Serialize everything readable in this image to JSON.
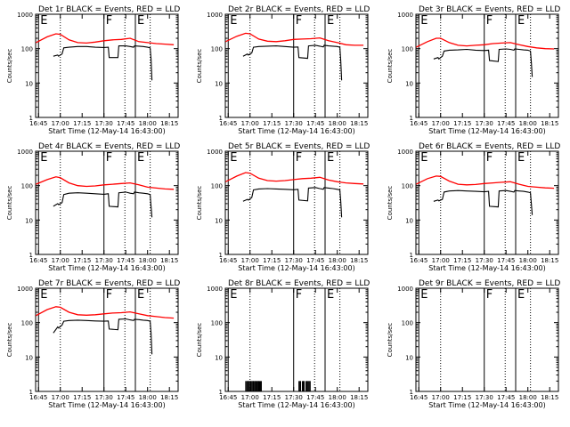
{
  "chart_data": {
    "type": "line",
    "grid": false,
    "ylabel": "Counts/sec",
    "xlabel": "Start Time (12-May-14 16:43:00)",
    "y_scale": "log",
    "ylim": [
      1,
      1000
    ],
    "y_ticks": [
      1,
      10,
      100,
      1000
    ],
    "y_tick_labels": [
      "1",
      "10",
      "100",
      "1000"
    ],
    "xlim": [
      16.717,
      18.35
    ],
    "x_ticks": [
      16.75,
      17.0,
      17.25,
      17.5,
      17.75,
      18.0,
      18.25
    ],
    "x_tick_labels": [
      "16:45",
      "17:00",
      "17:15",
      "17:30",
      "17:45",
      "18:00",
      "18:15"
    ],
    "series_legend": "BLACK = Events, RED = LLD",
    "markers": [
      {
        "label": "E",
        "x": 16.75,
        "style": "solid"
      },
      {
        "label": "",
        "x": 17.0,
        "style": "dotted"
      },
      {
        "label": "F",
        "x": 17.5,
        "style": "solid"
      },
      {
        "label": "",
        "x": 17.74,
        "style": "dotted"
      },
      {
        "label": "E",
        "x": 17.86,
        "style": "solid"
      },
      {
        "label": "",
        "x": 18.03,
        "style": "dotted"
      }
    ],
    "panels": [
      {
        "title": "Det 1r BLACK = Events, RED = LLD",
        "red": {
          "x": [
            16.72,
            16.85,
            16.95,
            17.0,
            17.1,
            17.2,
            17.3,
            17.4,
            17.5,
            17.6,
            17.7,
            17.8,
            17.9,
            18.0,
            18.1,
            18.2,
            18.3
          ],
          "y": [
            150,
            220,
            270,
            260,
            180,
            150,
            145,
            155,
            170,
            180,
            185,
            200,
            160,
            150,
            140,
            135,
            130
          ]
        },
        "black": {
          "x": [
            16.92,
            16.97,
            16.98,
            17.02,
            17.04,
            17.1,
            17.2,
            17.3,
            17.4,
            17.5,
            17.55,
            17.56,
            17.66,
            17.67,
            17.75,
            17.8,
            17.84,
            17.85,
            17.9,
            17.95,
            18.0,
            18.03,
            18.04,
            18.05
          ],
          "y": [
            60,
            65,
            60,
            70,
            105,
            110,
            115,
            115,
            110,
            108,
            110,
            55,
            55,
            120,
            120,
            115,
            110,
            120,
            118,
            115,
            110,
            105,
            50,
            12
          ]
        }
      },
      {
        "title": "Det 2r BLACK = Events, RED = LLD",
        "red": {
          "x": [
            16.72,
            16.85,
            16.95,
            17.0,
            17.1,
            17.2,
            17.3,
            17.4,
            17.5,
            17.6,
            17.7,
            17.8,
            17.9,
            18.0,
            18.1,
            18.2,
            18.3
          ],
          "y": [
            160,
            230,
            280,
            270,
            190,
            165,
            160,
            170,
            185,
            190,
            195,
            205,
            170,
            150,
            130,
            125,
            125
          ]
        },
        "black": {
          "x": [
            16.92,
            16.97,
            16.98,
            17.02,
            17.04,
            17.1,
            17.2,
            17.3,
            17.4,
            17.5,
            17.55,
            17.56,
            17.66,
            17.67,
            17.75,
            17.8,
            17.84,
            17.85,
            17.9,
            17.95,
            18.0,
            18.03,
            18.04,
            18.05
          ],
          "y": [
            60,
            70,
            65,
            75,
            110,
            115,
            118,
            120,
            115,
            110,
            112,
            55,
            52,
            120,
            125,
            118,
            112,
            125,
            120,
            118,
            115,
            110,
            45,
            12
          ]
        }
      },
      {
        "title": "Det 3r BLACK = Events, RED = LLD",
        "red": {
          "x": [
            16.72,
            16.85,
            16.95,
            17.0,
            17.1,
            17.2,
            17.3,
            17.4,
            17.5,
            17.6,
            17.7,
            17.8,
            17.9,
            18.0,
            18.1,
            18.2,
            18.3
          ],
          "y": [
            110,
            160,
            200,
            200,
            150,
            125,
            120,
            125,
            130,
            140,
            145,
            150,
            130,
            115,
            105,
            100,
            98
          ]
        },
        "black": {
          "x": [
            16.92,
            16.97,
            16.98,
            17.02,
            17.04,
            17.1,
            17.2,
            17.3,
            17.4,
            17.5,
            17.55,
            17.56,
            17.66,
            17.67,
            17.75,
            17.8,
            17.84,
            17.85,
            17.9,
            17.95,
            18.0,
            18.03,
            18.04,
            18.05
          ],
          "y": [
            50,
            55,
            50,
            60,
            85,
            90,
            92,
            95,
            90,
            88,
            90,
            45,
            42,
            95,
            98,
            95,
            90,
            98,
            95,
            92,
            90,
            85,
            40,
            15
          ]
        }
      },
      {
        "title": "Det 4r BLACK = Events, RED = LLD",
        "red": {
          "x": [
            16.72,
            16.85,
            16.95,
            17.0,
            17.1,
            17.2,
            17.3,
            17.4,
            17.5,
            17.6,
            17.7,
            17.8,
            17.9,
            18.0,
            18.1,
            18.2,
            18.3
          ],
          "y": [
            110,
            150,
            180,
            170,
            120,
            100,
            95,
            98,
            105,
            110,
            115,
            120,
            105,
            90,
            85,
            80,
            78
          ]
        },
        "black": {
          "x": [
            16.92,
            16.97,
            16.98,
            17.02,
            17.04,
            17.1,
            17.2,
            17.3,
            17.4,
            17.5,
            17.55,
            17.56,
            17.66,
            17.67,
            17.75,
            17.8,
            17.84,
            17.85,
            17.9,
            17.95,
            18.0,
            18.03,
            18.04,
            18.05
          ],
          "y": [
            25,
            30,
            28,
            32,
            55,
            60,
            62,
            60,
            58,
            56,
            58,
            25,
            24,
            62,
            65,
            60,
            58,
            65,
            62,
            60,
            58,
            55,
            25,
            12
          ]
        }
      },
      {
        "title": "Det 5r BLACK = Events, RED = LLD",
        "red": {
          "x": [
            16.72,
            16.85,
            16.95,
            17.0,
            17.1,
            17.2,
            17.3,
            17.4,
            17.5,
            17.6,
            17.7,
            17.8,
            17.9,
            18.0,
            18.1,
            18.2,
            18.3
          ],
          "y": [
            130,
            190,
            240,
            230,
            165,
            140,
            135,
            140,
            150,
            160,
            165,
            175,
            145,
            130,
            120,
            115,
            112
          ]
        },
        "black": {
          "x": [
            16.92,
            16.97,
            16.98,
            17.02,
            17.04,
            17.1,
            17.2,
            17.3,
            17.4,
            17.5,
            17.55,
            17.56,
            17.66,
            17.67,
            17.75,
            17.8,
            17.84,
            17.85,
            17.9,
            17.95,
            18.0,
            18.03,
            18.04,
            18.05
          ],
          "y": [
            35,
            40,
            38,
            45,
            75,
            80,
            82,
            80,
            78,
            76,
            78,
            38,
            36,
            85,
            88,
            82,
            78,
            88,
            85,
            82,
            78,
            75,
            35,
            12
          ]
        }
      },
      {
        "title": "Det 6r BLACK = Events, RED = LLD",
        "red": {
          "x": [
            16.72,
            16.85,
            16.95,
            17.0,
            17.1,
            17.2,
            17.3,
            17.4,
            17.5,
            17.6,
            17.7,
            17.8,
            17.9,
            18.0,
            18.1,
            18.2,
            18.3
          ],
          "y": [
            110,
            160,
            190,
            185,
            135,
            110,
            105,
            108,
            115,
            120,
            125,
            130,
            110,
            95,
            90,
            86,
            84
          ]
        },
        "black": {
          "x": [
            16.92,
            16.97,
            16.98,
            17.02,
            17.04,
            17.1,
            17.2,
            17.3,
            17.4,
            17.5,
            17.55,
            17.56,
            17.66,
            17.67,
            17.75,
            17.8,
            17.84,
            17.85,
            17.9,
            17.95,
            18.0,
            18.03,
            18.04,
            18.05
          ],
          "y": [
            35,
            38,
            36,
            40,
            65,
            70,
            72,
            70,
            68,
            66,
            68,
            25,
            24,
            70,
            72,
            68,
            65,
            72,
            70,
            68,
            65,
            62,
            30,
            14
          ]
        }
      },
      {
        "title": "Det 7r BLACK = Events, RED = LLD",
        "red": {
          "x": [
            16.72,
            16.85,
            16.95,
            17.0,
            17.1,
            17.2,
            17.3,
            17.4,
            17.5,
            17.6,
            17.7,
            17.8,
            17.9,
            18.0,
            18.1,
            18.2,
            18.3
          ],
          "y": [
            160,
            240,
            290,
            280,
            200,
            170,
            165,
            170,
            180,
            190,
            195,
            205,
            180,
            160,
            150,
            140,
            135
          ]
        },
        "black": {
          "x": [
            16.92,
            16.97,
            16.98,
            17.02,
            17.04,
            17.1,
            17.2,
            17.3,
            17.4,
            17.5,
            17.55,
            17.56,
            17.66,
            17.67,
            17.75,
            17.8,
            17.84,
            17.85,
            17.9,
            17.95,
            18.0,
            18.03,
            18.04,
            18.05
          ],
          "y": [
            50,
            75,
            70,
            85,
            110,
            115,
            118,
            115,
            112,
            110,
            112,
            65,
            62,
            125,
            128,
            120,
            115,
            125,
            122,
            118,
            115,
            110,
            50,
            12
          ]
        }
      },
      {
        "title": "Det 8r BLACK = Events, RED = LLD",
        "black_spikes": {
          "y_high": 2,
          "x": [
            16.95,
            16.96,
            16.97,
            16.975,
            16.98,
            16.99,
            17.0,
            17.005,
            17.01,
            17.02,
            17.03,
            17.035,
            17.04,
            17.05,
            17.06,
            17.065,
            17.07,
            17.08,
            17.09,
            17.095,
            17.1,
            17.11,
            17.12,
            17.13,
            17.56,
            17.57,
            17.575,
            17.58,
            17.6,
            17.61,
            17.615,
            17.62,
            17.64,
            17.65,
            17.66,
            17.67,
            17.68,
            17.69
          ]
        }
      },
      {
        "title": "Det 9r BLACK = Events, RED = LLD"
      }
    ]
  }
}
